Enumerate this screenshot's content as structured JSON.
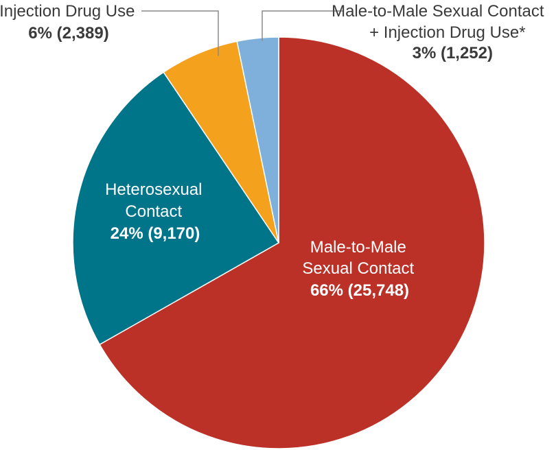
{
  "chart_data": {
    "type": "pie",
    "start_angle_deg": 0,
    "direction": "clockwise",
    "slices": [
      {
        "name_lines": [
          "Male-to-Male",
          "Sexual Contact"
        ],
        "percent": 66,
        "count": 25748,
        "value_label": "66% (25,748)",
        "color": "#bb3127",
        "label_color": "#ffffff"
      },
      {
        "name_lines": [
          "Heterosexual",
          "Contact"
        ],
        "percent": 24,
        "count": 9170,
        "value_label": "24% (9,170)",
        "color": "#00758a",
        "label_color": "#ffffff"
      },
      {
        "name_lines": [
          "Injection Drug Use"
        ],
        "percent": 6,
        "count": 2389,
        "value_label": "6% (2,389)",
        "color": "#f4a11d",
        "label_color": "#3a3a3a"
      },
      {
        "name_lines": [
          "Male-to-Male Sexual Contact",
          "+ Injection Drug Use*"
        ],
        "percent": 3,
        "count": 1252,
        "value_label": "3% (1,252)",
        "color": "#7fb0dc",
        "label_color": "#3a3a3a"
      }
    ]
  }
}
